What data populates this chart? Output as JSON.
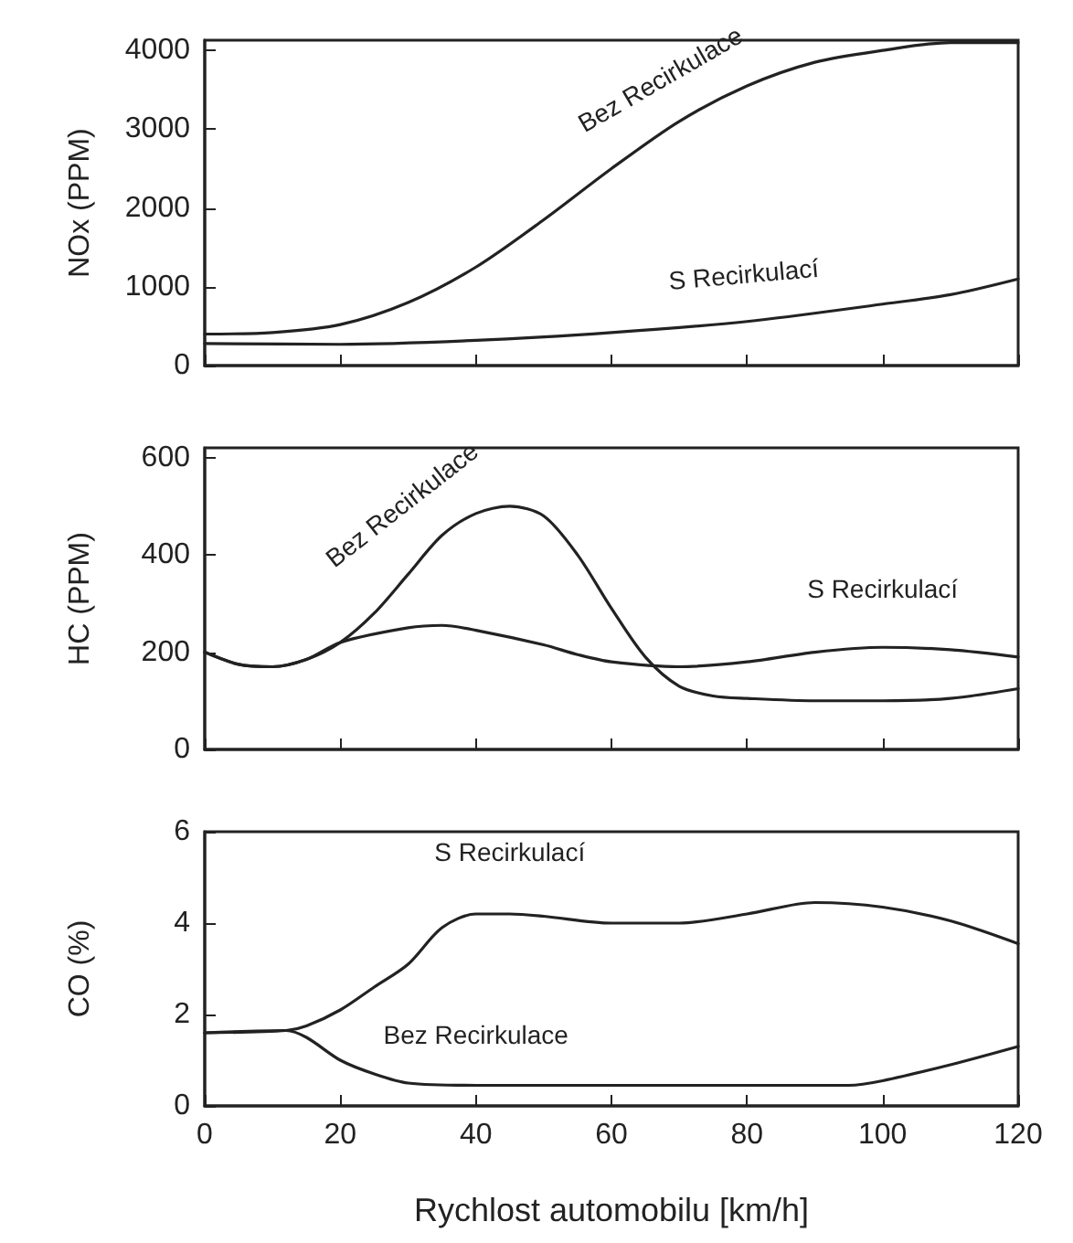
{
  "chart_data": [
    {
      "type": "line",
      "ylabel": "NOx (PPM)",
      "xlim": [
        0,
        120
      ],
      "xticks": [
        0,
        20,
        40,
        60,
        80,
        100,
        120
      ],
      "ylim": [
        0,
        4130
      ],
      "yticks": [
        0,
        1000,
        2000,
        3000,
        4000
      ],
      "tick_labels": "y",
      "marker": "none",
      "line_style": "solid",
      "series": [
        {
          "name": "Bez Recirkulace",
          "color": "#222222",
          "x": [
            0,
            10,
            20,
            30,
            40,
            50,
            60,
            70,
            80,
            90,
            100,
            110,
            120
          ],
          "values": [
            400,
            420,
            520,
            800,
            1250,
            1850,
            2500,
            3100,
            3550,
            3850,
            4000,
            4100,
            4100
          ]
        },
        {
          "name": "S Recirkulací",
          "color": "#222222",
          "x": [
            0,
            20,
            40,
            60,
            80,
            100,
            110,
            120
          ],
          "values": [
            280,
            270,
            320,
            420,
            560,
            780,
            900,
            1100
          ]
        }
      ]
    },
    {
      "type": "line",
      "ylabel": "HC (PPM)",
      "xlim": [
        0,
        120
      ],
      "xticks": [
        0,
        20,
        40,
        60,
        80,
        100,
        120
      ],
      "ylim": [
        0,
        620
      ],
      "yticks": [
        0,
        200,
        400,
        600
      ],
      "tick_labels": "y",
      "marker": "none",
      "line_style": "solid",
      "series": [
        {
          "name": "Bez Recirkulace",
          "color": "#222222",
          "x": [
            0,
            5,
            10,
            15,
            20,
            25,
            30,
            35,
            40,
            45,
            50,
            55,
            60,
            65,
            70,
            75,
            80,
            90,
            100,
            110,
            120
          ],
          "values": [
            200,
            175,
            170,
            185,
            220,
            280,
            360,
            440,
            485,
            500,
            480,
            400,
            290,
            190,
            130,
            110,
            105,
            100,
            100,
            105,
            125
          ]
        },
        {
          "name": "S Recirkulací",
          "color": "#222222",
          "x": [
            0,
            5,
            10,
            15,
            20,
            30,
            35,
            40,
            50,
            55,
            60,
            70,
            80,
            90,
            100,
            110,
            120
          ],
          "values": [
            200,
            175,
            170,
            185,
            220,
            250,
            255,
            245,
            215,
            195,
            180,
            170,
            180,
            200,
            210,
            205,
            190
          ]
        }
      ]
    },
    {
      "type": "line",
      "ylabel": "CO (%)",
      "xlabel": "Rychlost automobilu [km/h]",
      "xlim": [
        0,
        120
      ],
      "xticks": [
        0,
        20,
        40,
        60,
        80,
        100,
        120
      ],
      "ylim": [
        0,
        6
      ],
      "yticks": [
        0,
        2,
        4,
        6
      ],
      "marker": "none",
      "line_style": "solid",
      "series": [
        {
          "name": "S Recirkulací",
          "color": "#222222",
          "x": [
            0,
            12,
            15,
            20,
            25,
            30,
            35,
            40,
            45,
            50,
            60,
            70,
            80,
            90,
            100,
            110,
            120
          ],
          "values": [
            1.6,
            1.65,
            1.75,
            2.1,
            2.6,
            3.1,
            3.9,
            4.2,
            4.2,
            4.15,
            4.0,
            4.0,
            4.2,
            4.45,
            4.35,
            4.05,
            3.55
          ]
        },
        {
          "name": "Bez Recirkulace",
          "color": "#222222",
          "x": [
            0,
            12,
            15,
            20,
            25,
            30,
            40,
            60,
            80,
            95,
            100,
            110,
            120
          ],
          "values": [
            1.6,
            1.65,
            1.5,
            1.0,
            0.7,
            0.5,
            0.45,
            0.45,
            0.45,
            0.45,
            0.55,
            0.9,
            1.3
          ]
        }
      ]
    }
  ]
}
